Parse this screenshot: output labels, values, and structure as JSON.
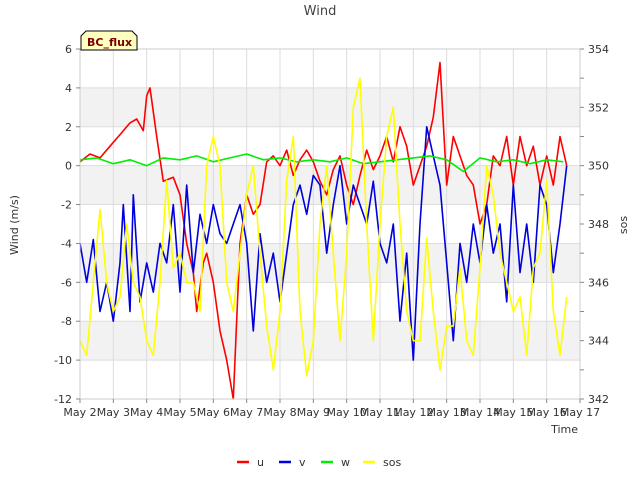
{
  "chart_data": {
    "type": "line",
    "title": "Wind",
    "station_label": "BC_flux",
    "xlabel": "Time",
    "ylabel": "Wind (m/s)",
    "y2label": "sos",
    "x_tick_labels": [
      "May 2",
      "May 3",
      "May 4",
      "May 5",
      "May 6",
      "May 7",
      "May 8",
      "May 9",
      "May 10",
      "May 11",
      "May 12",
      "May 13",
      "May 14",
      "May 15",
      "May 16",
      "May 17"
    ],
    "xlim": [
      0,
      15
    ],
    "ylim": [
      -12,
      6
    ],
    "y_ticks": [
      -12,
      -10,
      -8,
      -6,
      -4,
      -2,
      0,
      2,
      4,
      6
    ],
    "y2lim": [
      342,
      354
    ],
    "y2_ticks": [
      342,
      344,
      346,
      348,
      350,
      352,
      354
    ],
    "grid": true,
    "legend_position": "bottom-center",
    "series": [
      {
        "name": "u",
        "axis": "left",
        "color": "#ff0000",
        "x": [
          0,
          0.3,
          0.6,
          0.9,
          1.2,
          1.5,
          1.7,
          1.9,
          2.0,
          2.1,
          2.3,
          2.5,
          2.8,
          3.0,
          3.2,
          3.4,
          3.5,
          3.7,
          3.8,
          4.0,
          4.2,
          4.4,
          4.6,
          4.8,
          5.0,
          5.2,
          5.4,
          5.6,
          5.8,
          6.0,
          6.2,
          6.4,
          6.6,
          6.8,
          7.0,
          7.2,
          7.4,
          7.6,
          7.8,
          8.0,
          8.2,
          8.4,
          8.6,
          8.8,
          9.0,
          9.2,
          9.4,
          9.6,
          9.8,
          10.0,
          10.2,
          10.4,
          10.6,
          10.8,
          11.0,
          11.2,
          11.4,
          11.6,
          11.8,
          12.0,
          12.2,
          12.4,
          12.6,
          12.8,
          13.0,
          13.2,
          13.4,
          13.6,
          13.8,
          14.0,
          14.2,
          14.4,
          14.6
        ],
        "values": [
          0.2,
          0.6,
          0.4,
          1.0,
          1.6,
          2.2,
          2.4,
          1.8,
          3.6,
          4.0,
          1.5,
          -0.8,
          -0.6,
          -1.5,
          -4.0,
          -5.5,
          -7.5,
          -5.0,
          -4.5,
          -6.0,
          -8.5,
          -10.0,
          -12.0,
          -4.0,
          -1.5,
          -2.5,
          -2.0,
          0.2,
          0.5,
          0.0,
          0.8,
          -0.5,
          0.3,
          0.8,
          0.2,
          -0.8,
          -1.5,
          -0.2,
          0.5,
          -1.0,
          -2.0,
          -0.5,
          0.8,
          -0.2,
          0.5,
          1.5,
          0.2,
          2.0,
          1.0,
          -1.0,
          0.0,
          1.0,
          2.5,
          5.3,
          -1.0,
          1.5,
          0.5,
          -0.5,
          -1.0,
          -3.0,
          -2.0,
          0.5,
          0.0,
          1.5,
          -1.0,
          1.5,
          0.0,
          1.0,
          -1.0,
          0.5,
          -1.0,
          1.5,
          0.0
        ]
      },
      {
        "name": "v",
        "axis": "left",
        "color": "#0000dd",
        "x": [
          0,
          0.2,
          0.4,
          0.6,
          0.8,
          1.0,
          1.2,
          1.3,
          1.5,
          1.6,
          1.8,
          2.0,
          2.2,
          2.4,
          2.6,
          2.8,
          3.0,
          3.2,
          3.4,
          3.6,
          3.8,
          4.0,
          4.2,
          4.4,
          4.6,
          4.8,
          5.0,
          5.2,
          5.4,
          5.6,
          5.8,
          6.0,
          6.2,
          6.4,
          6.6,
          6.8,
          7.0,
          7.2,
          7.4,
          7.6,
          7.8,
          8.0,
          8.2,
          8.4,
          8.6,
          8.8,
          9.0,
          9.2,
          9.4,
          9.6,
          9.8,
          10.0,
          10.2,
          10.4,
          10.6,
          10.8,
          11.0,
          11.2,
          11.4,
          11.6,
          11.8,
          12.0,
          12.2,
          12.4,
          12.6,
          12.8,
          13.0,
          13.2,
          13.4,
          13.6,
          13.8,
          14.0,
          14.2,
          14.4,
          14.6
        ],
        "values": [
          -4.0,
          -6.0,
          -3.8,
          -7.5,
          -6.0,
          -8.0,
          -5.0,
          -2.0,
          -7.5,
          -1.5,
          -7.0,
          -5.0,
          -6.5,
          -4.0,
          -5.0,
          -2.0,
          -6.5,
          -1.0,
          -5.5,
          -2.5,
          -4.0,
          -2.0,
          -3.5,
          -4.0,
          -3.0,
          -2.0,
          -4.0,
          -8.5,
          -3.5,
          -6.0,
          -4.5,
          -7.0,
          -4.5,
          -2.0,
          -1.0,
          -2.5,
          -0.5,
          -1.0,
          -4.5,
          -2.0,
          0.0,
          -3.0,
          -1.0,
          -2.0,
          -3.0,
          -0.8,
          -4.0,
          -5.0,
          -3.0,
          -8.0,
          -4.5,
          -10.0,
          -3.0,
          2.0,
          0.5,
          -1.0,
          -5.0,
          -9.0,
          -4.0,
          -6.0,
          -3.0,
          -5.0,
          -2.0,
          -4.5,
          -3.0,
          -7.0,
          -1.0,
          -5.5,
          -3.0,
          -6.0,
          -1.0,
          -2.0,
          -5.5,
          -3.0,
          0.0
        ]
      },
      {
        "name": "w",
        "axis": "left",
        "color": "#00ee00",
        "x": [
          0,
          0.5,
          1.0,
          1.5,
          2.0,
          2.5,
          3.0,
          3.5,
          4.0,
          4.5,
          5.0,
          5.5,
          6.0,
          6.5,
          7.0,
          7.5,
          8.0,
          8.5,
          9.0,
          9.5,
          10.0,
          10.5,
          11.0,
          11.5,
          12.0,
          12.5,
          13.0,
          13.5,
          14.0,
          14.5
        ],
        "values": [
          0.3,
          0.4,
          0.1,
          0.3,
          0.0,
          0.4,
          0.3,
          0.5,
          0.2,
          0.4,
          0.6,
          0.3,
          0.4,
          0.2,
          0.3,
          0.2,
          0.4,
          0.1,
          0.2,
          0.3,
          0.4,
          0.5,
          0.3,
          -0.3,
          0.4,
          0.2,
          0.3,
          0.1,
          0.3,
          0.2
        ]
      },
      {
        "name": "sos",
        "axis": "right",
        "color": "#ffff00",
        "x": [
          0,
          0.2,
          0.4,
          0.6,
          0.8,
          1.0,
          1.2,
          1.4,
          1.6,
          1.8,
          2.0,
          2.2,
          2.4,
          2.6,
          2.8,
          3.0,
          3.2,
          3.4,
          3.6,
          3.8,
          4.0,
          4.2,
          4.4,
          4.6,
          4.8,
          5.0,
          5.2,
          5.4,
          5.6,
          5.8,
          6.0,
          6.2,
          6.4,
          6.6,
          6.8,
          7.0,
          7.2,
          7.4,
          7.6,
          7.8,
          8.0,
          8.2,
          8.4,
          8.6,
          8.8,
          9.0,
          9.2,
          9.4,
          9.6,
          9.8,
          10.0,
          10.2,
          10.4,
          10.6,
          10.8,
          11.0,
          11.2,
          11.4,
          11.6,
          11.8,
          12.0,
          12.2,
          12.4,
          12.6,
          12.8,
          13.0,
          13.2,
          13.4,
          13.6,
          13.8,
          14.0,
          14.2,
          14.4,
          14.6
        ],
        "values": [
          344.0,
          343.5,
          346.0,
          348.5,
          346.0,
          345.0,
          345.5,
          348.0,
          346.0,
          345.5,
          344.0,
          343.5,
          346.0,
          349.5,
          346.5,
          347.0,
          346.0,
          346.0,
          345.0,
          350.0,
          351.0,
          350.0,
          346.0,
          345.0,
          347.0,
          349.0,
          350.0,
          347.0,
          344.5,
          343.0,
          345.0,
          349.5,
          351.0,
          345.0,
          342.8,
          344.0,
          348.0,
          350.0,
          347.0,
          344.0,
          347.0,
          352.0,
          353.0,
          348.0,
          344.0,
          348.0,
          351.0,
          352.0,
          348.0,
          345.0,
          344.0,
          344.0,
          347.5,
          345.0,
          343.0,
          344.5,
          344.5,
          346.5,
          344.0,
          343.5,
          346.5,
          350.0,
          349.0,
          347.0,
          346.0,
          345.0,
          345.5,
          343.5,
          346.5,
          347.0,
          349.5,
          345.0,
          343.5,
          345.5
        ]
      }
    ]
  }
}
